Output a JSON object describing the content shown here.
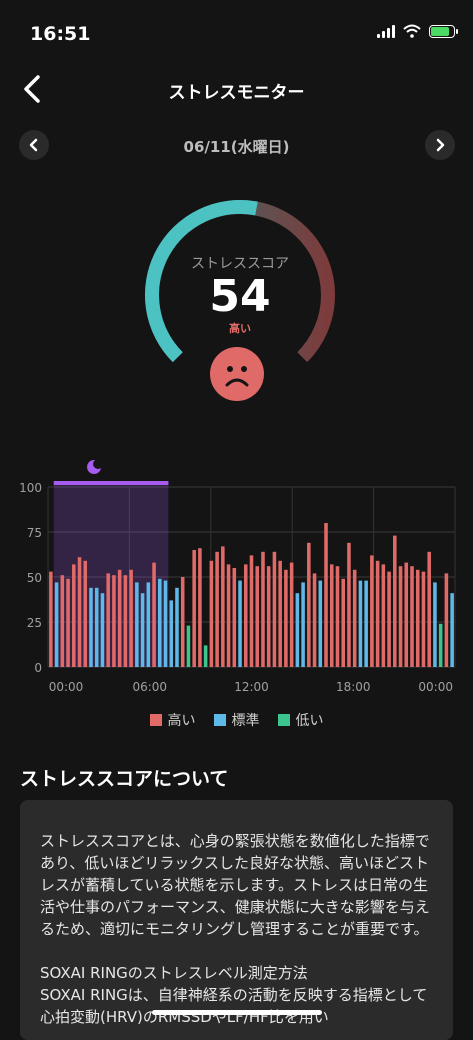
{
  "status_bar": {
    "time": "16:51"
  },
  "header": {
    "title": "ストレスモニター"
  },
  "date_nav": {
    "date": "06/11(水曜日)"
  },
  "gauge": {
    "label": "ストレススコア",
    "value": "54",
    "level": "高い",
    "score": 54,
    "max": 100
  },
  "colors": {
    "high": "#e06a67",
    "normal": "#5fb9e8",
    "low": "#3cc48e",
    "sleep": "#a65cf0",
    "gauge_start": "#4cc2c2",
    "gauge_end": "#d25c5c"
  },
  "chart_data": {
    "type": "bar",
    "ylim": [
      0,
      100
    ],
    "yticks": [
      0,
      25,
      50,
      75,
      100
    ],
    "xtick_labels": [
      "00:00",
      "06:00",
      "12:00",
      "18:00",
      "00:00"
    ],
    "sleep_period": {
      "start_index": 1,
      "end_index": 21,
      "icon": "moon-icon"
    },
    "values": [
      53,
      47,
      51,
      49,
      57,
      61,
      59,
      44,
      44,
      41,
      52,
      51,
      54,
      51,
      54,
      47,
      41,
      47,
      58,
      49,
      48,
      37,
      44,
      50,
      23,
      65,
      66,
      12,
      59,
      64,
      67,
      57,
      55,
      48,
      57,
      62,
      56,
      64,
      56,
      64,
      59,
      54,
      58,
      41,
      47,
      69,
      52,
      48,
      80,
      57,
      56,
      49,
      69,
      54,
      48,
      48,
      62,
      59,
      57,
      53,
      73,
      56,
      58,
      56,
      54,
      53,
      64,
      47,
      24,
      52,
      41
    ],
    "levels": [
      "high",
      "normal",
      "high",
      "high",
      "high",
      "high",
      "high",
      "normal",
      "normal",
      "normal",
      "high",
      "high",
      "high",
      "high",
      "high",
      "normal",
      "normal",
      "normal",
      "high",
      "normal",
      "normal",
      "normal",
      "normal",
      "high",
      "low",
      "high",
      "high",
      "low",
      "high",
      "high",
      "high",
      "high",
      "high",
      "normal",
      "high",
      "high",
      "high",
      "high",
      "high",
      "high",
      "high",
      "high",
      "high",
      "normal",
      "normal",
      "high",
      "high",
      "normal",
      "high",
      "high",
      "high",
      "high",
      "high",
      "high",
      "normal",
      "normal",
      "high",
      "high",
      "high",
      "high",
      "high",
      "high",
      "high",
      "high",
      "high",
      "high",
      "high",
      "normal",
      "low",
      "high",
      "normal"
    ],
    "legend": [
      "高い",
      "標準",
      "低い"
    ]
  },
  "about": {
    "title": "ストレススコアについて",
    "p1": "ストレススコアとは、心身の緊張状態を数値化した指標であり、低いほどリラックスした良好な状態、高いほどストレスが蓄積している状態を示します。ストレスは日常の生活や仕事のパフォーマンス、健康状態に大きな影響を与えるため、適切にモニタリングし管理することが重要です。",
    "p2": "SOXAI RINGのストレスレベル測定方法",
    "p3": "SOXAI RINGは、自律神経系の活動を反映する指標として心拍変動(HRV)のRMSSDやLF/HF比を用い"
  }
}
